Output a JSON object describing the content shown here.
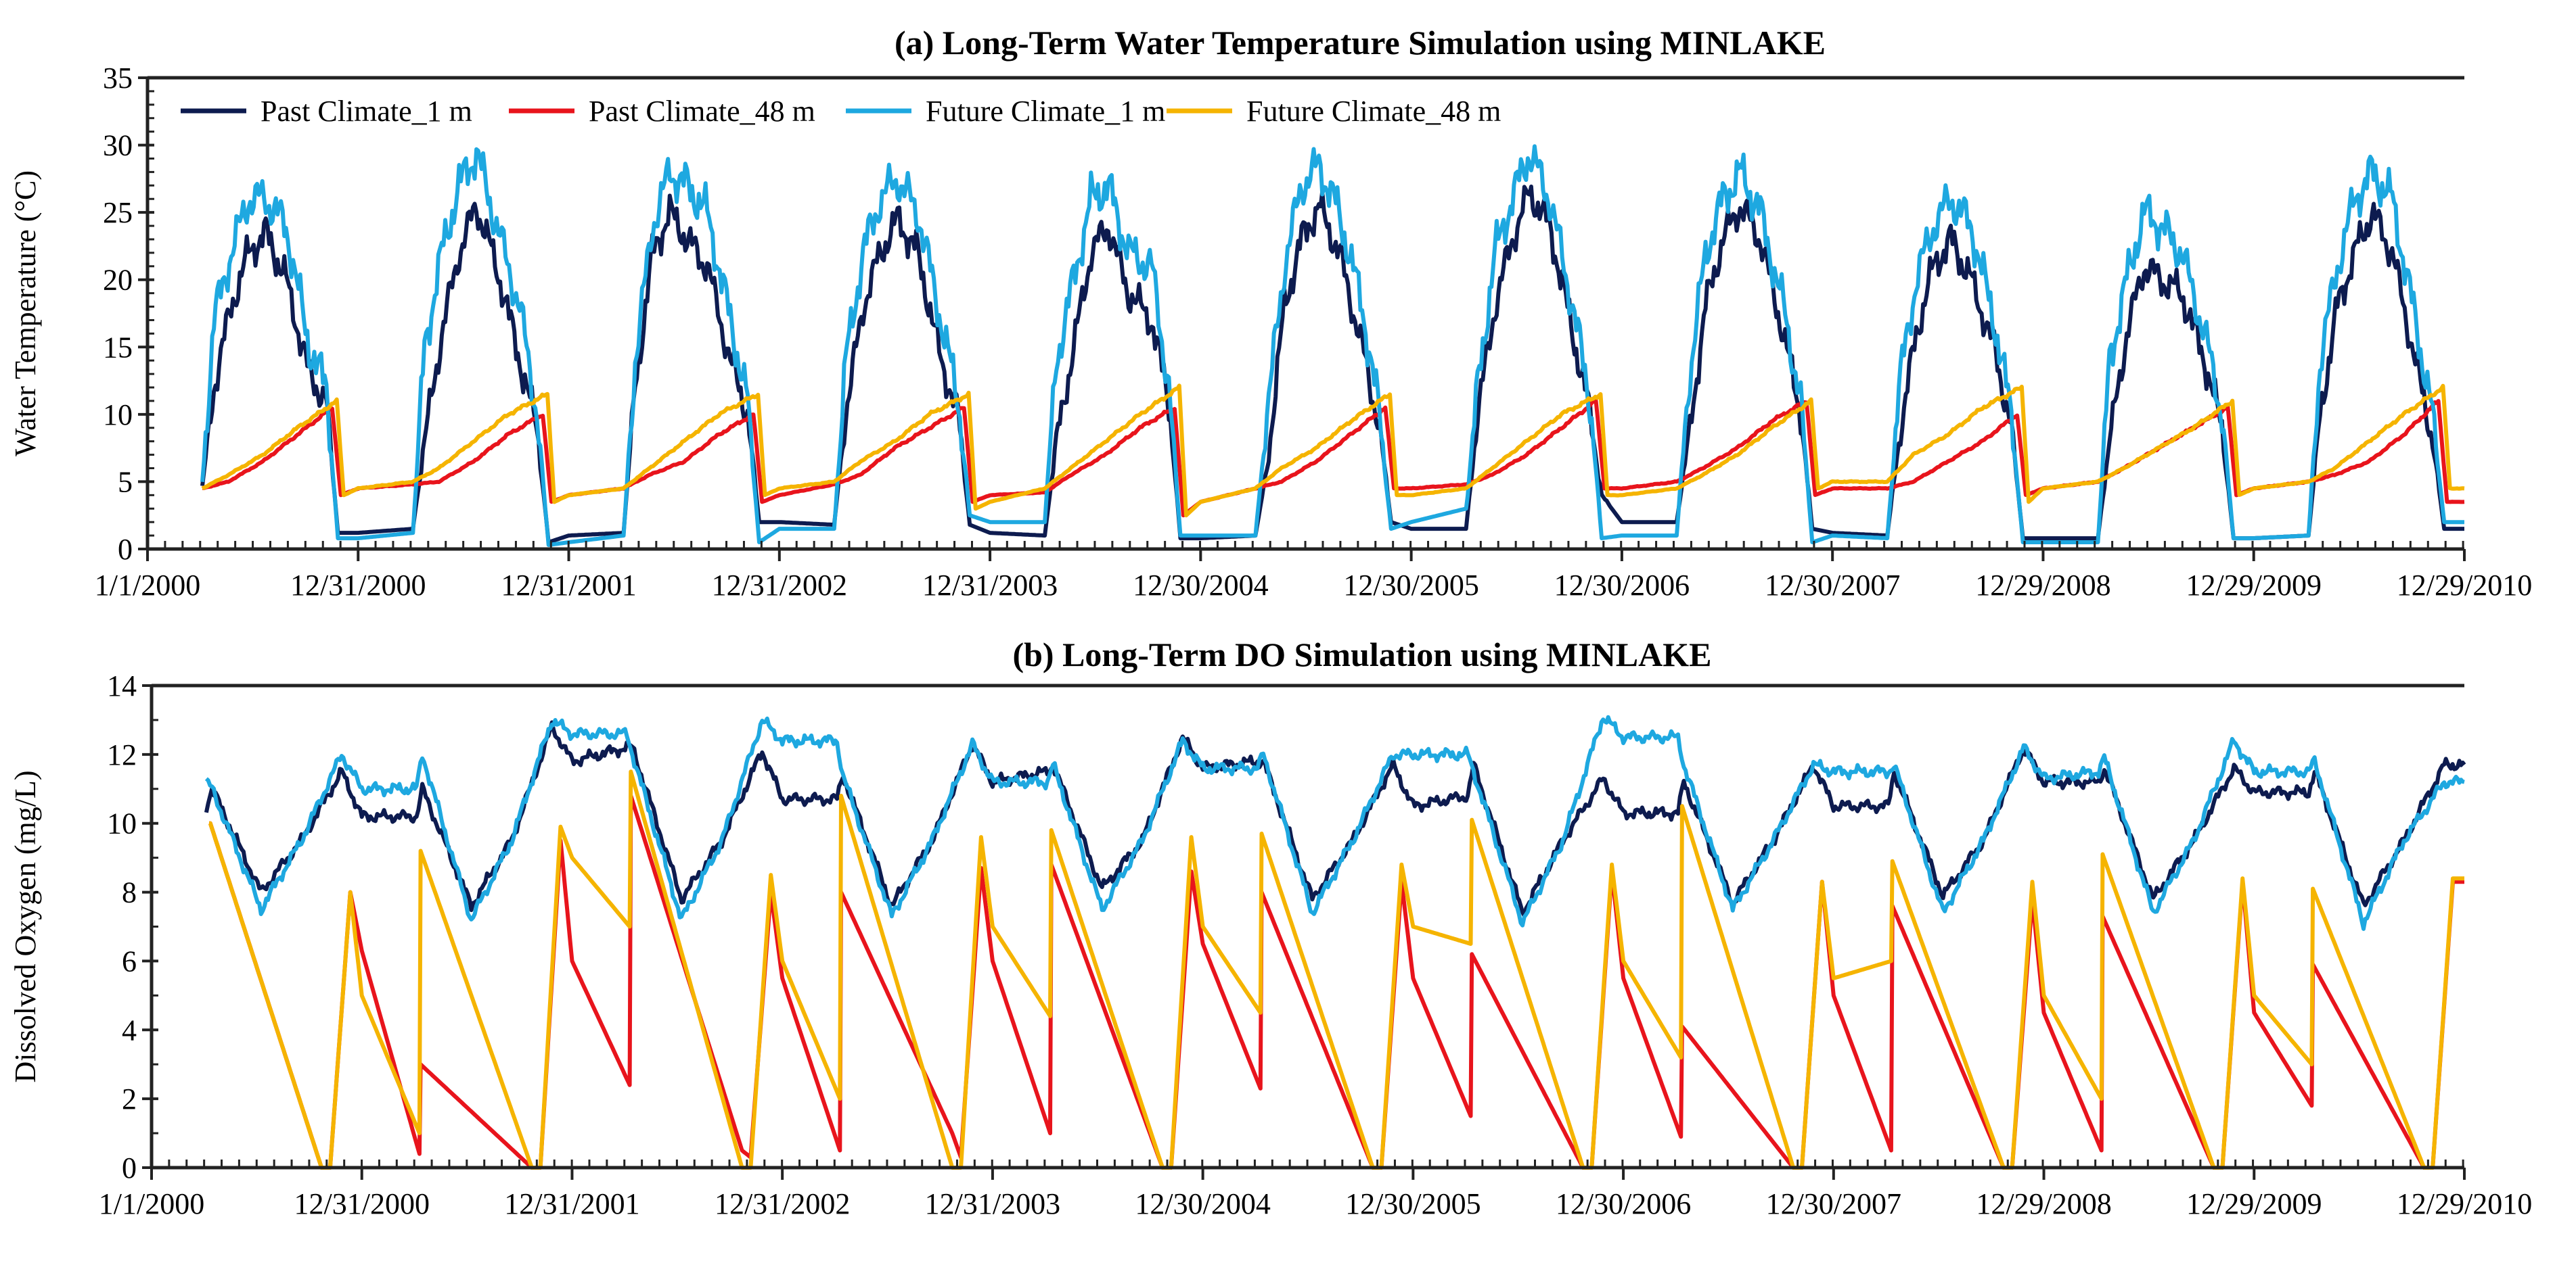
{
  "chart_data": [
    {
      "type": "line",
      "title": "(a) Long-Term Water Temperature Simulation using MINLAKE",
      "xlabel": "",
      "ylabel": "Water Temperature (°C)",
      "ylim": [
        0,
        35
      ],
      "yticks": [
        "0",
        "5",
        "10",
        "15",
        "20",
        "25",
        "30",
        "35"
      ],
      "x_unit": "days since 1/1/2000",
      "xlim": [
        0,
        4015
      ],
      "x_tick_labels": [
        "1/1/2000",
        "12/31/2000",
        "12/31/2001",
        "12/31/2002",
        "12/31/2003",
        "12/30/2004",
        "12/30/2005",
        "12/30/2006",
        "12/30/2007",
        "12/29/2008",
        "12/29/2009",
        "12/29/2010"
      ],
      "grid": false,
      "legend_placement": "top",
      "years": [
        2000,
        2001,
        2002,
        2003,
        2004,
        2005,
        2006,
        2007,
        2008,
        2009,
        2010
      ],
      "series": [
        {
          "name": "Past Climate_1 m",
          "color": "#0d1b4f",
          "noise": 1.0,
          "doy": [
            0,
            95,
            115,
            145,
            175,
            205,
            240,
            280,
            310,
            330
          ],
          "values": [
            [
              null,
              4.5,
              12,
              18,
              22,
              23.5,
              20,
              13,
              11,
              1.2
            ],
            [
              1.2,
              1.5,
              8,
              16,
              22,
              25.5,
              21,
              14,
              9,
              0.5
            ],
            [
              1,
              1.2,
              12,
              22,
              25,
              23,
              21,
              14,
              10,
              2
            ],
            [
              2,
              1.8,
              10,
              18,
              22,
              24.5,
              22,
              14,
              10,
              1.8
            ],
            [
              1.2,
              1,
              8,
              15,
              22,
              24,
              19,
              17,
              11,
              0.8
            ],
            [
              0.8,
              1,
              6,
              18,
              23,
              25.5,
              22,
              15,
              9,
              2
            ],
            [
              1.5,
              1.5,
              10,
              18,
              23,
              26.5,
              24,
              16,
              10,
              4
            ],
            [
              2,
              2,
              8,
              18,
              23,
              25.5,
              23,
              16,
              10,
              1.5
            ],
            [
              1.2,
              1,
              8,
              16,
              21,
              23,
              20,
              15,
              9,
              0.8
            ],
            [
              0.8,
              0.8,
              8,
              16,
              21,
              20,
              19,
              14,
              9,
              0.8
            ],
            [
              0.8,
              1,
              10,
              18,
              22,
              25,
              22,
              14,
              8,
              1.5
            ]
          ]
        },
        {
          "name": "Past Climate_48 m",
          "color": "#e8141c",
          "noise": 0.1,
          "doy": [
            0,
            95,
            140,
            200,
            260,
            320,
            335
          ],
          "values": [
            [
              null,
              4.5,
              5,
              6.5,
              8.5,
              10.5,
              4
            ],
            [
              4.5,
              4.8,
              5,
              6.5,
              8.5,
              10,
              3.5
            ],
            [
              4,
              4.5,
              5.5,
              6.5,
              8.5,
              10,
              3.5
            ],
            [
              4,
              4.8,
              5.5,
              7.5,
              9,
              10.5,
              3.5
            ],
            [
              4,
              4.2,
              5.5,
              7,
              9,
              10.5,
              2.5
            ],
            [
              3.5,
              4.5,
              5,
              6.5,
              8.5,
              10.5,
              4.5
            ],
            [
              4.5,
              4.8,
              5.5,
              7,
              9,
              11,
              4.5
            ],
            [
              4.5,
              5,
              6,
              7.5,
              9.5,
              11,
              4
            ],
            [
              4.5,
              4.5,
              5,
              6.5,
              8,
              10,
              4
            ],
            [
              4.5,
              5,
              6,
              7.5,
              9,
              10.5,
              4
            ],
            [
              4.5,
              5,
              5.5,
              6.5,
              8.5,
              11,
              3.5
            ]
          ]
        },
        {
          "name": "Future Climate_1 m",
          "color": "#1ea8e0",
          "noise": 1.2,
          "doy": [
            0,
            95,
            115,
            145,
            175,
            205,
            240,
            280,
            310,
            330
          ],
          "values": [
            [
              null,
              5,
              17,
              22,
              26,
              26,
              24,
              15,
              12,
              0.8
            ],
            [
              0.8,
              1.2,
              15,
              22,
              27,
              29.5,
              24,
              18,
              10,
              0.3
            ],
            [
              0.5,
              1,
              14,
              24,
              28,
              27,
              25,
              17,
              11,
              0.5
            ],
            [
              1.5,
              1.5,
              14,
              22,
              26,
              27.5,
              25,
              17,
              11,
              2.5
            ],
            [
              2,
              2,
              14,
              20,
              26,
              27,
              22,
              21,
              12,
              1
            ],
            [
              1,
              1,
              10,
              21,
              27,
              28.5,
              25,
              18,
              10,
              1.5
            ],
            [
              2,
              3,
              12,
              22,
              26,
              29.5,
              26,
              18,
              11,
              0.8
            ],
            [
              1,
              1,
              12,
              22,
              26,
              28,
              25,
              18,
              11,
              0.5
            ],
            [
              1,
              0.8,
              12,
              20,
              24,
              26,
              24,
              17,
              10,
              0.5
            ],
            [
              0.5,
              0.5,
              14,
              20,
              25,
              24,
              22,
              16,
              10,
              0.8
            ],
            [
              0.8,
              1,
              14,
              21,
              26,
              28,
              26,
              17,
              10,
              2
            ]
          ]
        },
        {
          "name": "Future Climate_48 m",
          "color": "#f5b400",
          "noise": 0.1,
          "doy": [
            0,
            95,
            140,
            200,
            260,
            328,
            340
          ],
          "values": [
            [
              null,
              4.5,
              5.5,
              7,
              9,
              11,
              4
            ],
            [
              4.5,
              5,
              6,
              8,
              10,
              11.5,
              3.5
            ],
            [
              4,
              4.5,
              6,
              8,
              10,
              11.5,
              4
            ],
            [
              4.5,
              5,
              6.5,
              8,
              10,
              11.5,
              3
            ],
            [
              3.5,
              4.5,
              6,
              8,
              10,
              12,
              2.5
            ],
            [
              3.5,
              4.5,
              6,
              7.5,
              9.5,
              11.5,
              4
            ],
            [
              4,
              4.5,
              6,
              8,
              10,
              11.5,
              4
            ],
            [
              4,
              4.5,
              5.5,
              7,
              9,
              11,
              4.5
            ],
            [
              5,
              5,
              7,
              8.5,
              10.5,
              12,
              3.5
            ],
            [
              4.5,
              5,
              6,
              7.5,
              9,
              11,
              4
            ],
            [
              4.5,
              5,
              6,
              8,
              10,
              12,
              4.5
            ]
          ]
        }
      ]
    },
    {
      "type": "line",
      "title": "(b) Long-Term DO Simulation using MINLAKE",
      "xlabel": "",
      "ylabel": "Dissolved Oxygen (mg/L)",
      "ylim": [
        0,
        14
      ],
      "yticks": [
        "0",
        "2",
        "4",
        "6",
        "8",
        "10",
        "12",
        "14"
      ],
      "x_unit": "days since 1/1/2000",
      "xlim": [
        0,
        4015
      ],
      "x_tick_labels": [
        "1/1/2000",
        "12/31/2000",
        "12/31/2001",
        "12/31/2002",
        "12/31/2003",
        "12/30/2004",
        "12/30/2005",
        "12/30/2006",
        "12/30/2007",
        "12/29/2008",
        "12/29/2009",
        "12/29/2010"
      ],
      "grid": false,
      "years": [
        2000,
        2001,
        2002,
        2003,
        2004,
        2005,
        2006,
        2007,
        2008,
        2009,
        2010
      ],
      "series": [
        {
          "name": "Past Climate_1 m",
          "color": "#0d1b4f",
          "noise": 0.12,
          "doy": [
            0,
            95,
            105,
            190,
            260,
            330
          ],
          "values": [
            [
              null,
              10.5,
              11,
              8,
              9.5,
              11.5
            ],
            [
              10.2,
              10.2,
              11,
              7.6,
              9.5,
              12.8
            ],
            [
              11.8,
              12.2,
              12.2,
              7.8,
              9.5,
              12.1
            ],
            [
              10.7,
              10.7,
              11.4,
              7.6,
              9.5,
              12.3
            ],
            [
              11.2,
              11.5,
              11.7,
              8.1,
              9.5,
              12.5
            ],
            [
              11.6,
              11.8,
              11.8,
              7.8,
              9.5,
              11.7
            ],
            [
              10.5,
              10.8,
              11.7,
              7.4,
              9.5,
              11.3
            ],
            [
              10.3,
              10.3,
              11.2,
              7.7,
              9.5,
              11.7
            ],
            [
              10.5,
              10.5,
              11.5,
              7.9,
              9.5,
              12.2
            ],
            [
              11.2,
              11.2,
              11.6,
              7.8,
              9.5,
              11.6
            ],
            [
              10.9,
              10.9,
              11.5,
              7.6,
              9.5,
              11.7
            ]
          ]
        },
        {
          "name": "Past Climate_48 m",
          "color": "#e8141c",
          "noise": 0,
          "doy": [
            0,
            100,
            102,
            295,
            310,
            345
          ],
          "values": [
            [
              null,
              10,
              10,
              0,
              0,
              8
            ],
            [
              6.3,
              0.4,
              3,
              0,
              0,
              9.5
            ],
            [
              6,
              2.4,
              10.8,
              0.5,
              0.3,
              8
            ],
            [
              5.5,
              0.5,
              8,
              1,
              0.3,
              8.7
            ],
            [
              6,
              1,
              8.8,
              0,
              0,
              8.6
            ],
            [
              6.5,
              2.3,
              8,
              0,
              0,
              8.3
            ],
            [
              5.5,
              1.5,
              6.2,
              0,
              0,
              8.6
            ],
            [
              5.5,
              0.9,
              4.1,
              0,
              0,
              8.3
            ],
            [
              5,
              0.5,
              7.6,
              0,
              0,
              7.8
            ],
            [
              4.5,
              0.5,
              7.3,
              0,
              0,
              8.3
            ],
            [
              4.5,
              1.8,
              5.9,
              0,
              0,
              8.3
            ]
          ]
        },
        {
          "name": "Future Climate_1 m",
          "color": "#1ea8e0",
          "noise": 0.12,
          "doy": [
            0,
            95,
            105,
            190,
            260,
            330
          ],
          "values": [
            [
              null,
              11.2,
              11,
              7.5,
              9.5,
              12
            ],
            [
              11,
              11,
              12,
              7.2,
              9.5,
              13
            ],
            [
              12.6,
              12.6,
              12,
              7.2,
              9.5,
              13
            ],
            [
              12.4,
              12.4,
              11.4,
              7.3,
              9.5,
              12.3
            ],
            [
              11.2,
              11.2,
              11.7,
              7.5,
              9.5,
              12.4
            ],
            [
              11.6,
              11.6,
              12,
              7.4,
              9.5,
              12
            ],
            [
              12,
              12,
              11.5,
              7.1,
              9.5,
              13.1
            ],
            [
              12.5,
              12.5,
              11.7,
              7.5,
              9.5,
              11.7
            ],
            [
              11.5,
              11.5,
              11.7,
              7.4,
              9.5,
              12.2
            ],
            [
              11.3,
              11.5,
              11.9,
              7.4,
              9.5,
              12.4
            ],
            [
              11.5,
              11.5,
              11.8,
              7.1,
              9.5,
              11.2
            ]
          ]
        },
        {
          "name": "Future Climate_48 m",
          "color": "#f5b400",
          "noise": 0,
          "doy": [
            0,
            100,
            102,
            295,
            310,
            345
          ],
          "values": [
            [
              null,
              10,
              10,
              0,
              0,
              8
            ],
            [
              5,
              1,
              9.2,
              0,
              0,
              9.9
            ],
            [
              9,
              7,
              11.5,
              0,
              0,
              8.5
            ],
            [
              6,
              2,
              10.8,
              0,
              0,
              9.6
            ],
            [
              7,
              4.4,
              9.8,
              0,
              0,
              9.6
            ],
            [
              7,
              4.5,
              9.7,
              0,
              0,
              8.8
            ],
            [
              7,
              6.5,
              10.1,
              0,
              0,
              8.8
            ],
            [
              6,
              3.2,
              10.5,
              0,
              0,
              8.3
            ],
            [
              5.5,
              6,
              8.9,
              0,
              0,
              8.3
            ],
            [
              5,
              2,
              9.1,
              0,
              0,
              8.4
            ],
            [
              5,
              3,
              8.1,
              0,
              0,
              8.4
            ]
          ]
        }
      ]
    }
  ]
}
